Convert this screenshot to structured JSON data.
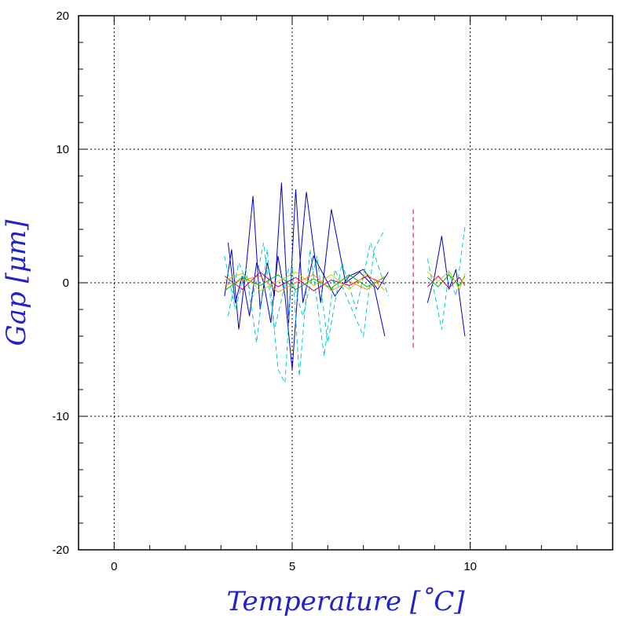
{
  "chart_data": {
    "type": "line",
    "title": "",
    "xlabel": "Temperature [˚C]",
    "ylabel": "Gap [μm]",
    "xlim": [
      -1,
      14
    ],
    "ylim": [
      -20,
      20
    ],
    "x_ticks": [
      0,
      5,
      10
    ],
    "y_ticks": [
      20,
      10,
      0,
      -10,
      -20
    ],
    "x_tick_labels": [
      "0",
      "5",
      "10"
    ],
    "y_tick_labels": [
      "20",
      "10",
      "0",
      "-10",
      "-20"
    ],
    "grid": true,
    "legend": "none",
    "colors": {
      "axis_title": "#2222cc",
      "series_palette": [
        "#0000cc",
        "#00cccc",
        "#cc0066",
        "#00bb00",
        "#cccc00",
        "#ff8800",
        "#8800cc",
        "#0066ff"
      ]
    },
    "series": [
      {
        "style": "solid",
        "color": "#0000cc",
        "x": [
          3.1,
          3.3,
          3.5,
          3.7,
          3.9,
          4.1,
          4.3,
          4.5,
          4.7,
          4.9,
          5.1,
          5.3,
          5.6,
          5.9,
          6.2,
          6.6,
          7.0,
          7.4,
          7.7
        ],
        "y": [
          -1.0,
          2.5,
          -3.5,
          1.0,
          6.5,
          -2.0,
          1.5,
          -1.0,
          7.5,
          -3.0,
          7.0,
          -1.5,
          2.0,
          0.5,
          -1.0,
          0.5,
          1.0,
          -0.5,
          0.8
        ]
      },
      {
        "style": "solid",
        "color": "#0000cc",
        "x": [
          3.2,
          3.4,
          3.6,
          3.8,
          4.0,
          4.2,
          4.4,
          4.6,
          4.8,
          5.0,
          5.2,
          5.4,
          5.8,
          6.1,
          6.5,
          6.9,
          7.3,
          7.6
        ],
        "y": [
          3.0,
          -1.5,
          0.5,
          -2.5,
          1.5,
          0.0,
          -3.0,
          2.0,
          -1.0,
          -6.5,
          1.0,
          6.8,
          -1.5,
          5.5,
          0.0,
          0.8,
          -0.3,
          -4.0
        ]
      },
      {
        "style": "dashed",
        "color": "#00cccc",
        "x": [
          3.1,
          3.4,
          3.7,
          4.0,
          4.3,
          4.6,
          4.8,
          5.0,
          5.2,
          5.5,
          5.9,
          6.2,
          6.6,
          7.0,
          7.3,
          7.6
        ],
        "y": [
          2.0,
          -2.0,
          1.0,
          -4.5,
          2.5,
          -6.5,
          -7.5,
          1.5,
          -7.0,
          2.5,
          -5.5,
          1.0,
          -1.5,
          -4.0,
          2.5,
          4.0
        ]
      },
      {
        "style": "dashed",
        "color": "#00cccc",
        "x": [
          3.2,
          3.5,
          3.9,
          4.2,
          4.5,
          4.9,
          5.3,
          5.7,
          6.0,
          6.4,
          6.8,
          7.2,
          7.7
        ],
        "y": [
          -2.5,
          1.5,
          -1.0,
          3.0,
          -3.5,
          1.0,
          -2.5,
          2.0,
          -4.5,
          1.5,
          -2.0,
          3.0,
          -1.0
        ]
      },
      {
        "style": "solid",
        "color": "#cc0066",
        "x": [
          3.1,
          3.6,
          4.1,
          4.6,
          5.1,
          5.6,
          6.1,
          6.6,
          7.1,
          7.6
        ],
        "y": [
          0.5,
          -0.5,
          0.8,
          -0.3,
          0.4,
          -0.6,
          0.2,
          -0.2,
          0.5,
          -0.1
        ]
      },
      {
        "style": "solid",
        "color": "#00bb00",
        "x": [
          3.1,
          3.6,
          4.1,
          4.6,
          5.1,
          5.6,
          6.1,
          6.6,
          7.1,
          7.6
        ],
        "y": [
          -0.6,
          0.4,
          -0.2,
          0.6,
          -0.5,
          0.3,
          -0.4,
          0.6,
          -0.3,
          0.4
        ]
      },
      {
        "style": "solid",
        "color": "#cccc00",
        "x": [
          3.1,
          3.6,
          4.1,
          4.6,
          5.1,
          5.6,
          6.1,
          6.6,
          7.1,
          7.6
        ],
        "y": [
          0.2,
          0.7,
          -0.6,
          0.1,
          0.8,
          -0.2,
          0.6,
          -0.5,
          0.7,
          -0.6
        ]
      },
      {
        "style": "solid",
        "color": "#ff8800",
        "x": [
          3.1,
          3.6,
          4.1,
          4.6,
          5.1,
          5.6,
          6.1,
          6.6,
          7.1,
          7.6
        ],
        "y": [
          -0.2,
          0.2,
          0.5,
          -0.7,
          0.0,
          0.6,
          -0.6,
          0.1,
          -0.5,
          0.5
        ]
      },
      {
        "style": "dashed",
        "color": "#cc0066",
        "x": [
          8.4,
          8.4
        ],
        "y": [
          5.5,
          -5.0
        ]
      },
      {
        "style": "solid",
        "color": "#0000cc",
        "x": [
          8.8,
          9.0,
          9.2,
          9.4,
          9.6,
          9.85
        ],
        "y": [
          -1.5,
          0.5,
          3.5,
          -0.5,
          1.0,
          -4.0
        ]
      },
      {
        "style": "dashed",
        "color": "#00cccc",
        "x": [
          8.8,
          9.0,
          9.2,
          9.4,
          9.6,
          9.85
        ],
        "y": [
          1.8,
          -0.8,
          -3.5,
          0.8,
          -1.0,
          4.2
        ]
      },
      {
        "style": "solid",
        "color": "#00bb00",
        "x": [
          8.8,
          9.1,
          9.4,
          9.7,
          9.85
        ],
        "y": [
          0.4,
          -0.3,
          0.6,
          -0.2,
          0.5
        ]
      },
      {
        "style": "solid",
        "color": "#cc0066",
        "x": [
          8.8,
          9.1,
          9.4,
          9.7,
          9.85
        ],
        "y": [
          -0.3,
          0.5,
          -0.4,
          0.4,
          -0.2
        ]
      },
      {
        "style": "solid",
        "color": "#cccc00",
        "x": [
          8.8,
          9.1,
          9.4,
          9.7,
          9.85
        ],
        "y": [
          0.8,
          0.1,
          0.9,
          -0.5,
          0.7
        ]
      }
    ]
  }
}
